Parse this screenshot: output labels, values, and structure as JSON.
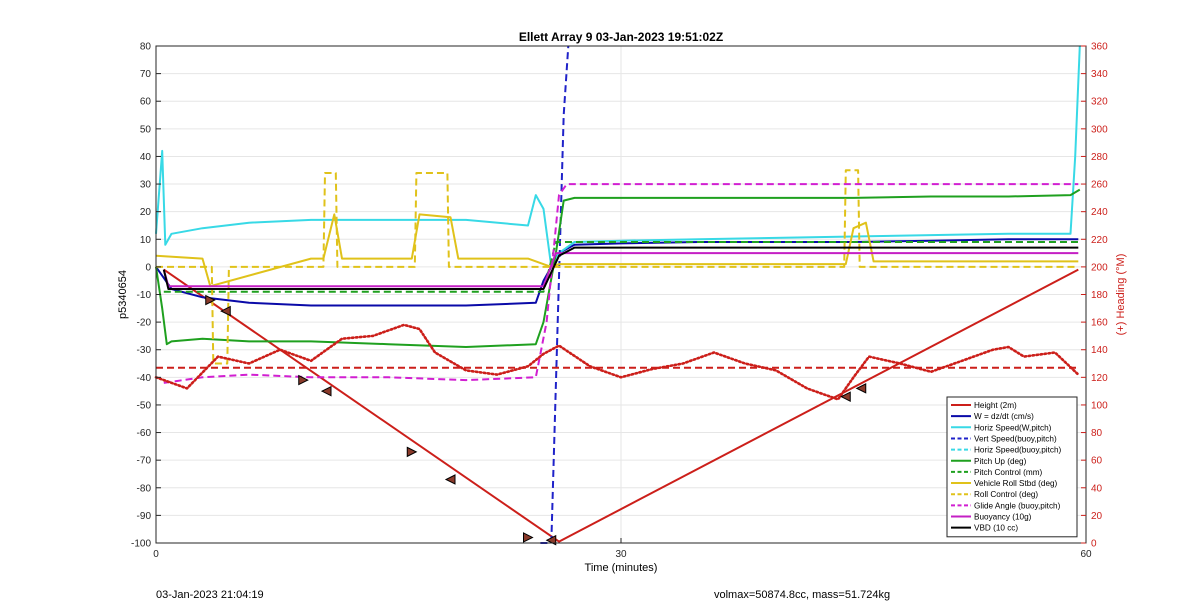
{
  "chart_data": {
    "type": "line",
    "title": "Ellett Array 9 03-Jan-2023 19:51:02Z",
    "xlabel": "Time (minutes)",
    "ylabel_left": "p5340654",
    "ylabel_right": "(+) Heading (°M)",
    "xlim": [
      0,
      60
    ],
    "ylim_left": [
      -100,
      80
    ],
    "ylim_right": [
      0,
      360
    ],
    "xticks": [
      0,
      30,
      60
    ],
    "yticks_left": [
      80,
      70,
      60,
      50,
      40,
      30,
      20,
      10,
      0,
      -10,
      -20,
      -30,
      -40,
      -50,
      -60,
      -70,
      -80,
      -90,
      -100
    ],
    "yticks_right": [
      360,
      340,
      320,
      300,
      280,
      260,
      240,
      220,
      200,
      180,
      160,
      140,
      120,
      100,
      80,
      60,
      40,
      20,
      0
    ],
    "grid": true,
    "legend_position": "bottom-right",
    "series": [
      {
        "name": "Height (2m)",
        "color": "#cc1f1a",
        "style": "solid",
        "axis": "left",
        "x": [
          0.5,
          26,
          59.5
        ],
        "y": [
          -1,
          -99.5,
          -1
        ]
      },
      {
        "name": "W = dz/dt (cm/s)",
        "color": "#0a0aa8",
        "style": "solid",
        "axis": "left",
        "x": [
          0,
          0.5,
          1,
          3,
          6,
          10,
          15,
          20,
          24.5,
          25,
          25.5,
          26,
          27,
          30,
          35,
          40,
          45,
          50,
          55,
          59.5
        ],
        "y": [
          0,
          -4,
          -8,
          -11,
          -13,
          -14,
          -14,
          -14,
          -13,
          -5,
          0,
          5,
          8,
          8.5,
          9,
          9,
          9,
          9.5,
          10,
          10
        ]
      },
      {
        "name": "Horiz Speed(W,pitch)",
        "color": "#38d9e6",
        "style": "solid",
        "axis": "left",
        "x": [
          0,
          0.4,
          0.6,
          1,
          3,
          6,
          10,
          15,
          20,
          24,
          24.5,
          25,
          25.5,
          26,
          27,
          30,
          35,
          40,
          45,
          50,
          55,
          59,
          59.3,
          59.6
        ],
        "y": [
          12,
          42,
          8,
          12,
          14,
          16,
          17,
          17,
          17,
          15,
          26,
          21,
          0,
          5,
          9,
          9.5,
          10,
          10.5,
          11,
          11.5,
          12,
          12,
          40,
          80
        ]
      },
      {
        "name": "Vert Speed(buoy,pitch)",
        "color": "#1f22c9",
        "style": "dashed",
        "axis": "left",
        "x": [
          24.8,
          25.5,
          26.3,
          26.6
        ],
        "y": [
          -100,
          -100,
          55,
          80
        ]
      },
      {
        "name": "Horiz Speed(buoy,pitch)",
        "color": "#38d9e6",
        "style": "dashed",
        "axis": "left",
        "x": [],
        "y": []
      },
      {
        "name": "Pitch Up (deg)",
        "color": "#1fa01f",
        "style": "solid",
        "axis": "left",
        "x": [
          0,
          0.4,
          0.7,
          1,
          3,
          6,
          10,
          15,
          20,
          24.5,
          25,
          25.8,
          26.3,
          27,
          30,
          35,
          40,
          45,
          50,
          55,
          59,
          59.6
        ],
        "y": [
          0,
          -15,
          -28,
          -27,
          -26,
          -27,
          -27,
          -28,
          -29,
          -28,
          -20,
          5,
          24,
          25,
          25,
          25,
          25,
          25,
          25.5,
          25.5,
          26,
          28
        ]
      },
      {
        "name": "Pitch Control (mm)",
        "color": "#1fa01f",
        "style": "dashed",
        "axis": "left",
        "x": [
          0.5,
          25,
          25.8,
          59.5
        ],
        "y": [
          -9,
          -9,
          9,
          9
        ]
      },
      {
        "name": "Vehicle Roll Stbd (deg)",
        "color": "#e0c21a",
        "style": "solid",
        "axis": "left",
        "x": [
          0,
          3,
          3.5,
          10,
          10.8,
          11.5,
          12,
          16.5,
          17,
          19,
          19.5,
          24,
          25.5,
          26,
          30,
          40,
          44.5,
          45,
          45.8,
          46.3,
          59.5
        ],
        "y": [
          4,
          3,
          -7,
          3,
          3,
          19,
          3,
          3,
          19,
          18,
          3,
          3,
          0,
          1,
          1,
          1,
          1,
          14,
          16,
          2,
          2
        ]
      },
      {
        "name": "Roll Control (deg)",
        "color": "#e0c21a",
        "style": "dashed",
        "axis": "left",
        "x": [
          0,
          3.6,
          3.7,
          4.6,
          4.7,
          10.8,
          10.9,
          11.6,
          11.7,
          16.7,
          16.8,
          18.8,
          18.9,
          25.5,
          25.6,
          44.4,
          44.5,
          45.3,
          45.4,
          59.5
        ],
        "y": [
          0,
          0,
          -35,
          -35,
          0,
          0,
          34,
          34,
          0,
          0,
          34,
          34,
          0,
          0,
          0,
          0,
          35,
          35,
          0,
          0
        ]
      },
      {
        "name": "Glide Angle (buoy,pitch)",
        "color": "#d11fd1",
        "style": "dashed",
        "axis": "left",
        "x": [
          0.5,
          3,
          6,
          10,
          15,
          20,
          24.5,
          25.2,
          26,
          26.5,
          30,
          35,
          40,
          45,
          50,
          55,
          59.5
        ],
        "y": [
          -42,
          -40,
          -39,
          -40,
          -40,
          -41,
          -40,
          -20,
          26,
          30,
          30,
          30,
          30,
          30,
          30,
          30,
          30
        ]
      },
      {
        "name": "Buoyancy (10g)",
        "color": "#c41fc4",
        "style": "solid",
        "axis": "left",
        "x": [
          0.5,
          0.8,
          25,
          25.8,
          26.2,
          59.5
        ],
        "y": [
          -1,
          -7,
          -7,
          5,
          5,
          5
        ]
      },
      {
        "name": "VBD (10 cc)",
        "color": "#000000",
        "style": "solid",
        "axis": "left",
        "x": [
          0.5,
          0.8,
          25,
          26,
          27,
          59.5
        ],
        "y": [
          -1,
          -8,
          -8,
          4,
          7,
          7
        ]
      },
      {
        "name": "",
        "color": "#cc1f1a",
        "style": "dotted",
        "axis": "right",
        "x": [
          0,
          2,
          4,
          6,
          8,
          10,
          12,
          14,
          16,
          17,
          18,
          20,
          22,
          24,
          25,
          26,
          28,
          30,
          32,
          34,
          36,
          38,
          40,
          42,
          44,
          45,
          46,
          48,
          50,
          52,
          54,
          55,
          56,
          58,
          59.5
        ],
        "y": [
          120,
          112,
          135,
          130,
          140,
          132,
          148,
          150,
          158,
          155,
          138,
          125,
          122,
          128,
          137,
          143,
          128,
          120,
          126,
          130,
          138,
          130,
          125,
          112,
          104,
          120,
          135,
          130,
          124,
          132,
          140,
          142,
          135,
          138,
          122
        ]
      },
      {
        "name": "",
        "color": "#cc1f1a",
        "style": "dashed",
        "axis": "right",
        "x": [
          0,
          59.5
        ],
        "y": [
          127,
          127
        ]
      }
    ],
    "markers": {
      "right_triangles": [
        [
          3.5,
          -12
        ],
        [
          9.5,
          -41
        ],
        [
          16.5,
          -67
        ],
        [
          24,
          -98
        ]
      ],
      "left_triangles": [
        [
          4.5,
          -16
        ],
        [
          11,
          -45
        ],
        [
          19,
          -77
        ],
        [
          25.5,
          -99
        ],
        [
          44.5,
          -47
        ],
        [
          45.5,
          -44
        ]
      ]
    }
  },
  "footer": {
    "left": "03-Jan-2023 21:04:19",
    "right": "volmax=50874.8cc, mass=51.724kg"
  }
}
